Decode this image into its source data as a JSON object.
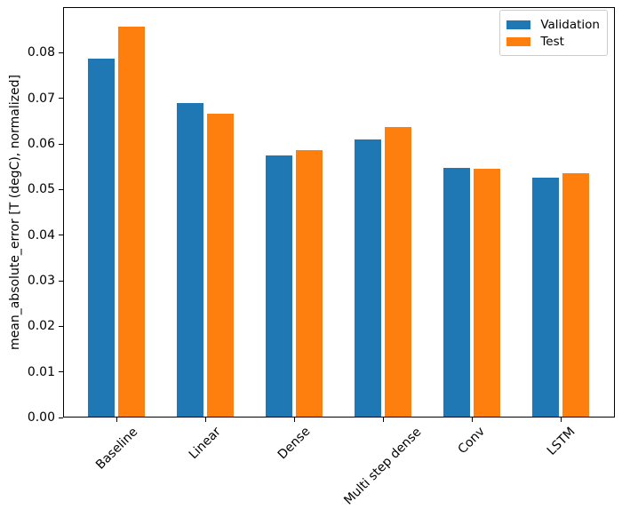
{
  "chart_data": {
    "type": "bar",
    "title": "",
    "xlabel": "",
    "ylabel": "mean_absolute_error [T (degC), normalized]",
    "categories": [
      "Baseline",
      "Linear",
      "Dense",
      "Multi step dense",
      "Conv",
      "LSTM"
    ],
    "series": [
      {
        "name": "Validation",
        "color": "#1f77b4",
        "values": [
          0.0786,
          0.0688,
          0.0573,
          0.0608,
          0.0545,
          0.0524
        ]
      },
      {
        "name": "Test",
        "color": "#ff7f0e",
        "values": [
          0.0855,
          0.0664,
          0.0584,
          0.0635,
          0.0543,
          0.0534
        ]
      }
    ],
    "ylim": [
      0,
      0.09
    ],
    "yticks": [
      0.0,
      0.01,
      0.02,
      0.03,
      0.04,
      0.05,
      0.06,
      0.07,
      0.08
    ],
    "ytick_labels": [
      "0.00",
      "0.01",
      "0.02",
      "0.03",
      "0.04",
      "0.05",
      "0.06",
      "0.07",
      "0.08"
    ],
    "grid": false,
    "legend_position": "upper right",
    "x_tick_rotation_deg": 45,
    "bar_width_ratio": 0.3
  }
}
